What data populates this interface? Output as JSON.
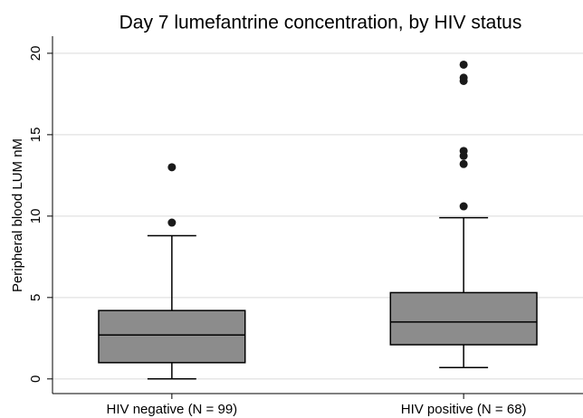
{
  "chart_data": {
    "type": "box",
    "title": "Day 7 lumefantrine concentration, by HIV status",
    "y_label": "Peripheral blood LUM nM",
    "categories": [
      "HIV negative (N = 99)",
      "HIV positive (N = 68)"
    ],
    "boxes": [
      {
        "whisker_low": 0,
        "q1": 1.0,
        "median": 2.7,
        "q3": 4.2,
        "whisker_high": 8.8,
        "outliers": [
          9.6,
          13.0
        ]
      },
      {
        "whisker_low": 0.7,
        "q1": 2.1,
        "median": 3.5,
        "q3": 5.3,
        "whisker_high": 9.9,
        "outliers": [
          10.6,
          13.2,
          13.7,
          14.0,
          18.3,
          18.5,
          19.3
        ]
      }
    ],
    "color": "#8c8c8c",
    "ylim": [
      -0.9,
      21.05
    ],
    "yticks": [
      0,
      5,
      10,
      15,
      20
    ],
    "grid": true
  }
}
